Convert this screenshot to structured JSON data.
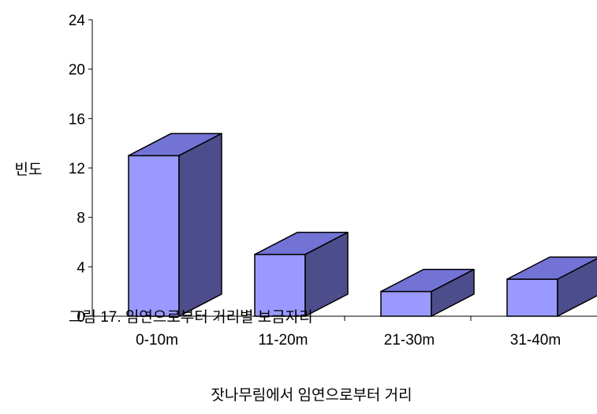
{
  "chart_data": {
    "type": "bar",
    "style": "3d-column",
    "categories": [
      "0-10m",
      "11-20m",
      "21-30m",
      "31-40m"
    ],
    "values": [
      13,
      5,
      2,
      3
    ],
    "ylabel": "빈도",
    "xlabel": "잣나무림에서 임연으로부터 거리",
    "ylim": [
      0,
      24
    ],
    "yticks": [
      0,
      4,
      8,
      12,
      16,
      20,
      24
    ],
    "grid": false,
    "colors": {
      "front": "#9999FF",
      "top": "#7373D6",
      "side": "#4D4D8C",
      "outline": "#000000"
    }
  },
  "caption": "그림 17. 임연으로부터 거리별 보금자리"
}
